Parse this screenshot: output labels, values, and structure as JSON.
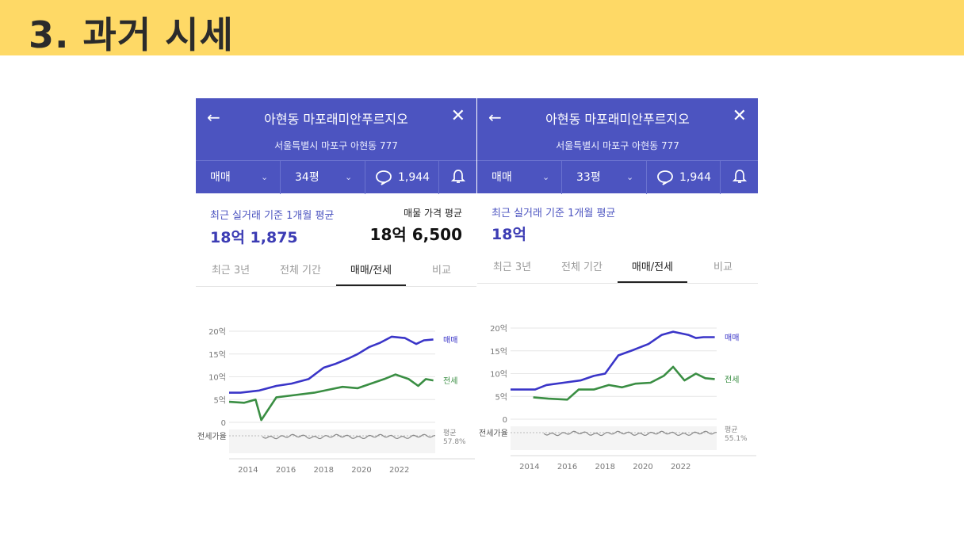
{
  "slide": {
    "title": "3. 과거 시세",
    "accent": "#fed966"
  },
  "colors": {
    "header": "#4c54c0",
    "sale": "#3a35c8",
    "jeonse": "#3a8e43",
    "ratio": "#888888"
  },
  "panels": [
    {
      "apt_name": "아현동 마포래미안푸르지오",
      "address": "서울특별시 마포구 아현동 777",
      "trade_type": "매매",
      "size": "34평",
      "comment_count": "1,944",
      "avg_label": "최근 실거래 기준 1개월 평균",
      "avg_value": "18억 1,875",
      "ask_label": "매물 가격 평균",
      "ask_value": "18억 6,500",
      "tabs": [
        "최근 3년",
        "전체 기간",
        "매매/전세",
        "비교"
      ],
      "active_tab": "매매/전세",
      "chart_data": {
        "type": "line",
        "y_ticks": [
          "20억",
          "15억",
          "10억",
          "5억",
          "0"
        ],
        "x_ticks": [
          "2014",
          "2016",
          "2018",
          "2020",
          "2022"
        ],
        "ylim": [
          0,
          20
        ],
        "series": [
          {
            "name": "매매",
            "x": [
              2013.0,
              2013.6,
              2014.6,
              2015.5,
              2016.3,
              2017.2,
              2018.0,
              2018.6,
              2019.3,
              2019.8,
              2020.4,
              2021.0,
              2021.6,
              2022.3,
              2022.9,
              2023.3,
              2023.8
            ],
            "y": [
              6.5,
              6.5,
              7.0,
              8.0,
              8.5,
              9.5,
              12.0,
              12.8,
              14.0,
              15.0,
              16.5,
              17.5,
              18.8,
              18.5,
              17.2,
              18.0,
              18.2
            ]
          },
          {
            "name": "전세",
            "x": [
              2013.0,
              2013.8,
              2014.4,
              2014.7,
              2015.5,
              2016.5,
              2017.5,
              2018.3,
              2019.0,
              2019.8,
              2020.5,
              2021.2,
              2021.8,
              2022.5,
              2023.0,
              2023.4,
              2023.8
            ],
            "y": [
              4.5,
              4.3,
              5.0,
              0.5,
              5.5,
              6.0,
              6.5,
              7.2,
              7.8,
              7.5,
              8.5,
              9.5,
              10.5,
              9.5,
              8.0,
              9.5,
              9.2
            ]
          }
        ],
        "ratio_label": "전세가율",
        "avg_label": "평균",
        "avg_value": "57.8%"
      }
    },
    {
      "apt_name": "아현동 마포래미안푸르지오",
      "address": "서울특별시 마포구 아현동 777",
      "trade_type": "매매",
      "size": "33평",
      "comment_count": "1,944",
      "avg_label": "최근 실거래 기준 1개월 평균",
      "avg_value": "18억",
      "tabs": [
        "최근 3년",
        "전체 기간",
        "매매/전세",
        "비교"
      ],
      "active_tab": "매매/전세",
      "chart_data": {
        "type": "line",
        "y_ticks": [
          "20억",
          "15억",
          "10억",
          "5억",
          "0"
        ],
        "x_ticks": [
          "2014",
          "2016",
          "2018",
          "2020",
          "2022"
        ],
        "ylim": [
          0,
          20
        ],
        "series": [
          {
            "name": "매매",
            "x": [
              2013.0,
              2014.3,
              2014.9,
              2015.8,
              2016.7,
              2017.4,
              2018.0,
              2018.7,
              2019.5,
              2020.3,
              2021.0,
              2021.6,
              2022.4,
              2022.8,
              2023.2,
              2023.8
            ],
            "y": [
              6.5,
              6.5,
              7.5,
              8.0,
              8.5,
              9.5,
              10.0,
              14.0,
              15.2,
              16.5,
              18.5,
              19.2,
              18.5,
              17.8,
              18.0,
              18.0
            ]
          },
          {
            "name": "전세",
            "x": [
              2014.2,
              2015.0,
              2016.0,
              2016.6,
              2017.4,
              2018.2,
              2018.9,
              2019.6,
              2020.4,
              2021.1,
              2021.6,
              2022.2,
              2022.8,
              2023.3,
              2023.8
            ],
            "y": [
              4.8,
              4.5,
              4.3,
              6.5,
              6.5,
              7.5,
              7.0,
              7.8,
              8.0,
              9.5,
              11.5,
              8.5,
              10.0,
              9.0,
              8.8
            ]
          }
        ],
        "ratio_label": "전세가율",
        "avg_label": "평균",
        "avg_value": "55.1%"
      }
    }
  ]
}
